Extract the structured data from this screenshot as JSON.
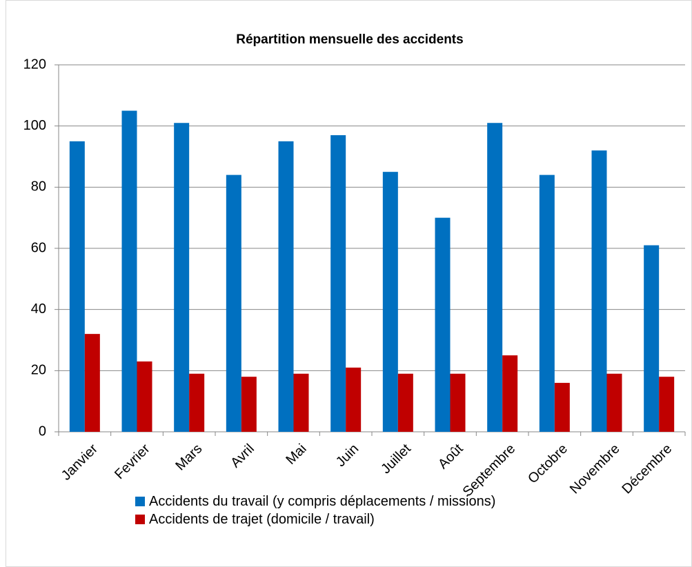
{
  "chart_data": {
    "type": "bar",
    "title": "Répartition mensuelle des accidents",
    "categories": [
      "Janvier",
      "Fevrier",
      "Mars",
      "Avril",
      "Mai",
      "Juin",
      "Juillet",
      "Août",
      "Septembre",
      "Octobre",
      "Novembre",
      "Décembre"
    ],
    "series": [
      {
        "name": "Accidents du travail (y compris déplacements / missions)",
        "color": "#0070c0",
        "values": [
          95,
          105,
          101,
          84,
          95,
          97,
          85,
          70,
          101,
          84,
          92,
          61
        ]
      },
      {
        "name": "Accidents de trajet (domicile / travail)",
        "color": "#c00000",
        "values": [
          32,
          23,
          19,
          18,
          19,
          21,
          19,
          19,
          25,
          16,
          19,
          18
        ]
      }
    ],
    "ylim": [
      0,
      120
    ],
    "yticks": [
      0,
      20,
      40,
      60,
      80,
      100,
      120
    ],
    "grid": true,
    "legend": "bottom"
  }
}
